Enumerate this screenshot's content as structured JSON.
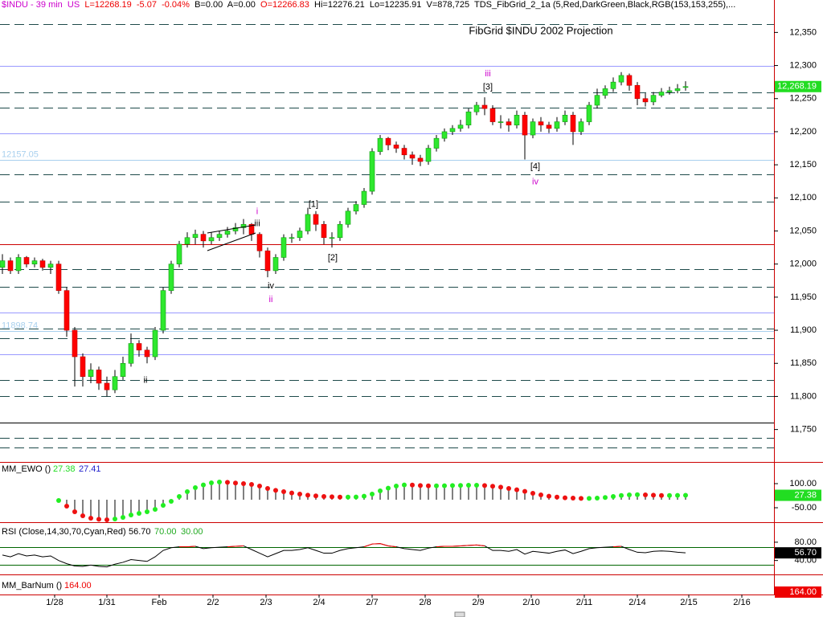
{
  "header": {
    "symbol": "$INDU - 39 min  US",
    "last": "L=12268.19",
    "change": "-5.07",
    "change_pct": "-0.04%",
    "bid": "B=0.00",
    "ask": "A=0.00",
    "open": "O=12266.83",
    "high": "Hi=12276.21",
    "low": "Lo=12235.91",
    "volume": "V=878,725",
    "study": "TDS_FibGrid_2_1a (5,Red,DarkGreen,Black,RGB(153,153,255),..."
  },
  "chart_data": [
    {
      "type": "candlestick",
      "title": "FibGrid $INDU 2002 Projection",
      "up_color": "#2ee82e",
      "down_color": "#ff0000",
      "wick_color": "#000000",
      "open": [
        11995,
        12005,
        11990,
        12010,
        12000,
        12005,
        11995,
        12000,
        11960,
        11900,
        11860,
        11830,
        11840,
        11820,
        11810,
        11830,
        11850,
        11880,
        11870,
        11860,
        11900,
        11960,
        12000,
        12030,
        12040,
        12045,
        12035,
        12040,
        12045,
        12050,
        12055,
        12060,
        12045,
        12020,
        11990,
        12010,
        12040,
        12040,
        12050,
        12075,
        12060,
        12040,
        12040,
        12060,
        12080,
        12090,
        12110,
        12170,
        12190,
        12180,
        12175,
        12165,
        12160,
        12155,
        12175,
        12190,
        12200,
        12205,
        12210,
        12230,
        12240,
        12235,
        12215,
        12215,
        12210,
        12225,
        12195,
        12215,
        12210,
        12205,
        12215,
        12225,
        12200,
        12215,
        12240,
        12255,
        12265,
        12275,
        12285,
        12270,
        12250,
        12245,
        12255,
        12260,
        12262,
        12266.83
      ],
      "high": [
        12015,
        12010,
        12015,
        12012,
        12010,
        12008,
        12005,
        12005,
        11965,
        11905,
        11865,
        11850,
        11845,
        11830,
        11840,
        11860,
        11895,
        11885,
        11875,
        11905,
        11965,
        12005,
        12035,
        12048,
        12052,
        12050,
        12048,
        12050,
        12056,
        12062,
        12068,
        12062,
        12048,
        12025,
        12015,
        12045,
        12046,
        12055,
        12085,
        12080,
        12065,
        12048,
        12065,
        12085,
        12095,
        12115,
        12175,
        12195,
        12192,
        12185,
        12180,
        12170,
        12165,
        12180,
        12195,
        12205,
        12210,
        12218,
        12235,
        12245,
        12252,
        12240,
        12225,
        12220,
        12232,
        12230,
        12220,
        12222,
        12215,
        12222,
        12232,
        12230,
        12220,
        12245,
        12265,
        12270,
        12282,
        12290,
        12288,
        12275,
        12258,
        12260,
        12266,
        12268,
        12272,
        12276.21
      ],
      "low": [
        11985,
        11985,
        11985,
        11995,
        11995,
        11990,
        11985,
        11955,
        11890,
        11815,
        11815,
        11820,
        11810,
        11800,
        11805,
        11825,
        11845,
        11860,
        11850,
        11855,
        11895,
        11955,
        11995,
        12025,
        12030,
        12025,
        12030,
        12035,
        12040,
        12045,
        12045,
        12035,
        12010,
        11980,
        11985,
        12005,
        12032,
        12035,
        12045,
        12050,
        12030,
        12025,
        12035,
        12055,
        12075,
        12085,
        12105,
        12165,
        12172,
        12168,
        12158,
        12150,
        12148,
        12150,
        12170,
        12185,
        12195,
        12200,
        12205,
        12225,
        12225,
        12210,
        12205,
        12200,
        12205,
        12158,
        12190,
        12200,
        12198,
        12200,
        12210,
        12180,
        12195,
        12210,
        12235,
        12250,
        12260,
        12270,
        12262,
        12240,
        12238,
        12240,
        12252,
        12256,
        12258,
        12262
      ],
      "close": [
        12005,
        11990,
        12010,
        12000,
        12005,
        11995,
        12000,
        11960,
        11900,
        11860,
        11830,
        11840,
        11820,
        11810,
        11830,
        11850,
        11880,
        11870,
        11860,
        11900,
        11960,
        12000,
        12030,
        12040,
        12045,
        12035,
        12040,
        12045,
        12050,
        12055,
        12060,
        12045,
        12020,
        11990,
        12010,
        12040,
        12040,
        12050,
        12075,
        12060,
        12040,
        12040,
        12060,
        12080,
        12090,
        12110,
        12170,
        12190,
        12180,
        12175,
        12165,
        12160,
        12155,
        12175,
        12190,
        12200,
        12205,
        12210,
        12230,
        12240,
        12235,
        12215,
        12215,
        12210,
        12225,
        12195,
        12215,
        12210,
        12205,
        12215,
        12225,
        12200,
        12215,
        12240,
        12255,
        12265,
        12275,
        12285,
        12270,
        12250,
        12245,
        12255,
        12260,
        12262,
        12265,
        12268.19
      ],
      "last_label": "12,268.19",
      "last_color": "#22dd22",
      "xlim": [
        -0.3,
        96
      ],
      "ylim": [
        11701,
        12399
      ],
      "yticks": [
        {
          "value": 11750,
          "label": "11,750"
        },
        {
          "value": 11800,
          "label": "11,800"
        },
        {
          "value": 11850,
          "label": "11,850"
        },
        {
          "value": 11900,
          "label": "11,900"
        },
        {
          "value": 11950,
          "label": "11,950"
        },
        {
          "value": 12000,
          "label": "12,000"
        },
        {
          "value": 12050,
          "label": "12,050"
        },
        {
          "value": 12100,
          "label": "12,100"
        },
        {
          "value": 12150,
          "label": "12,150"
        },
        {
          "value": 12200,
          "label": "12,200"
        },
        {
          "value": 12250,
          "label": "12,250"
        },
        {
          "value": 12300,
          "label": "12,300"
        },
        {
          "value": 12350,
          "label": "12,350"
        }
      ],
      "xticks": [
        {
          "value": 6.5,
          "label": "1/28"
        },
        {
          "value": 13,
          "label": "1/31"
        },
        {
          "value": 19.5,
          "label": "Feb"
        },
        {
          "value": 26.2,
          "label": "2/2"
        },
        {
          "value": 32.8,
          "label": "2/3"
        },
        {
          "value": 39.4,
          "label": "2/4"
        },
        {
          "value": 46,
          "label": "2/7"
        },
        {
          "value": 52.6,
          "label": "2/8"
        },
        {
          "value": 59.2,
          "label": "2/9"
        },
        {
          "value": 65.8,
          "label": "2/10"
        },
        {
          "value": 72.4,
          "label": "2/11"
        },
        {
          "value": 79,
          "label": "2/14"
        },
        {
          "value": 85.4,
          "label": "2/15"
        },
        {
          "value": 92,
          "label": "2/16"
        }
      ],
      "levels": {
        "dashed": {
          "color": "#1e4a4a",
          "values": [
            12362,
            12260,
            12236,
            12135,
            12094,
            11992,
            11966,
            11902,
            11888,
            11825,
            11800,
            11737,
            11723
          ]
        },
        "solid": {
          "color": "#9999ff",
          "values": [
            12300,
            12197,
            11927,
            11864
          ]
        },
        "marked": {
          "color": "#a8d0ee",
          "values": [
            12157.05,
            11898.74
          ]
        },
        "red": {
          "color": "#cc0000",
          "values": [
            12030
          ]
        },
        "black": {
          "color": "#000000",
          "values": [
            11761
          ]
        }
      },
      "annotations": [
        {
          "text": "i",
          "x": 31.7,
          "y": 12079,
          "color": "#cc00cc"
        },
        {
          "text": "iii",
          "x": 31.7,
          "y": 12061,
          "color": "#000000"
        },
        {
          "text": "iv",
          "x": 33.4,
          "y": 11967,
          "color": "#000000"
        },
        {
          "text": "ii",
          "x": 33.4,
          "y": 11946,
          "color": "#cc00cc"
        },
        {
          "text": "ii",
          "x": 17.8,
          "y": 11824,
          "color": "#000000"
        },
        {
          "text": "[1]",
          "x": 38.7,
          "y": 12090,
          "color": "#000000"
        },
        {
          "text": "[2]",
          "x": 41.1,
          "y": 12009,
          "color": "#000000"
        },
        {
          "text": "iii",
          "x": 60.4,
          "y": 12287,
          "color": "#cc00cc"
        },
        {
          "text": "[3]",
          "x": 60.4,
          "y": 12267,
          "color": "#000000"
        },
        {
          "text": "[4]",
          "x": 66.3,
          "y": 12147,
          "color": "#000000"
        },
        {
          "text": "iv",
          "x": 66.3,
          "y": 12124,
          "color": "#cc00cc"
        }
      ]
    },
    {
      "type": "ewo",
      "title": "MM_EWO ()",
      "signal": 27.41,
      "signal_color": "#2222cc",
      "up_color": "#22ee22",
      "down_color": "#ee1111",
      "stem_color": "#000000",
      "last_color": "#22dd22",
      "ylim": [
        -140,
        235
      ],
      "yticks": [
        {
          "value": 100,
          "label": "100.00"
        },
        {
          "value": -50,
          "label": "-50.00"
        }
      ],
      "values": [
        null,
        null,
        null,
        null,
        null,
        null,
        null,
        -5,
        -40,
        -75,
        -100,
        -115,
        -122,
        -125,
        -120,
        -110,
        -95,
        -85,
        -75,
        -60,
        -35,
        -10,
        20,
        50,
        75,
        92,
        105,
        110,
        108,
        104,
        100,
        95,
        85,
        70,
        58,
        50,
        42,
        35,
        28,
        24,
        20,
        18,
        16,
        16,
        17,
        22,
        35,
        55,
        72,
        85,
        92,
        91,
        88,
        86,
        86,
        87,
        88,
        89,
        90,
        90,
        88,
        84,
        78,
        70,
        62,
        52,
        40,
        30,
        22,
        16,
        12,
        10,
        8,
        8,
        10,
        14,
        20,
        26,
        30,
        31,
        30,
        28,
        26,
        26,
        27,
        27.38
      ]
    },
    {
      "type": "rsi",
      "title": "RSI (Close,14,30,70,Cyan,Red)",
      "color": "#000000",
      "overbought_color": "#ff0000",
      "band_color": "#006600",
      "last_color": "#000000",
      "overbought": {
        "value": 70,
        "label": "70.00"
      },
      "oversold": {
        "value": 30,
        "label": "30.00"
      },
      "last_label": "56.70",
      "ylim": [
        9.5,
        123.8
      ],
      "yticks": [
        {
          "value": 80,
          "label": "80.00"
        },
        {
          "value": 40,
          "label": "40.00"
        }
      ],
      "values": [
        52,
        48,
        55,
        50,
        52,
        48,
        50,
        40,
        33,
        28,
        27,
        30,
        27,
        26,
        32,
        36,
        42,
        40,
        38,
        48,
        62,
        68,
        70,
        70,
        71,
        66,
        68,
        69,
        70,
        71,
        72,
        64,
        56,
        48,
        55,
        62,
        62,
        64,
        68,
        62,
        56,
        56,
        62,
        66,
        68,
        70,
        76,
        77,
        72,
        70,
        66,
        64,
        62,
        67,
        70,
        71,
        71,
        72,
        73,
        74,
        72,
        62,
        62,
        60,
        64,
        54,
        60,
        58,
        56,
        60,
        63,
        55,
        60,
        66,
        68,
        69,
        70,
        71,
        64,
        58,
        57,
        60,
        61,
        60,
        58,
        56.7
      ]
    },
    {
      "type": "barnum",
      "title": "MM_BarNum ()",
      "value": {
        "value": 164,
        "label": "164.00"
      },
      "color": "#ee0000"
    }
  ]
}
